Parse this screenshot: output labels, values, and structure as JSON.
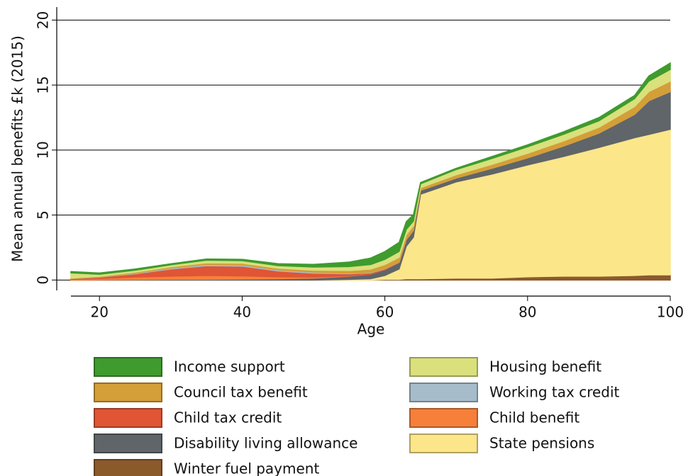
{
  "chart_data": {
    "type": "stacked-area",
    "x_label": "Age",
    "y_label": "Mean annual benefits £k (2015)",
    "x": [
      16,
      20,
      25,
      30,
      35,
      40,
      45,
      50,
      55,
      58,
      60,
      62,
      63,
      64,
      65,
      70,
      75,
      80,
      85,
      90,
      95,
      97,
      100
    ],
    "xlim": [
      16,
      100
    ],
    "xticks": [
      20,
      40,
      60,
      80,
      100
    ],
    "ylim": [
      -0.8,
      21
    ],
    "yticks": [
      0,
      5,
      10,
      15,
      20
    ],
    "grid": true,
    "series": [
      {
        "name": "Income support",
        "color": "#3f9b2e",
        "values": [
          0.1,
          0.1,
          0.1,
          0.08,
          0.1,
          0.1,
          0.15,
          0.2,
          0.35,
          0.5,
          0.6,
          0.7,
          0.6,
          0.5,
          0.1,
          0.1,
          0.15,
          0.15,
          0.2,
          0.25,
          0.25,
          0.4,
          0.5
        ]
      },
      {
        "name": "Housing benefit",
        "color": "#d9e07c",
        "values": [
          0.4,
          0.15,
          0.15,
          0.15,
          0.2,
          0.2,
          0.2,
          0.25,
          0.3,
          0.35,
          0.4,
          0.45,
          0.4,
          0.35,
          0.3,
          0.4,
          0.45,
          0.5,
          0.5,
          0.5,
          0.6,
          0.8,
          0.9
        ]
      },
      {
        "name": "Council tax benefit",
        "color": "#d49e38",
        "values": [
          0.05,
          0.05,
          0.07,
          0.1,
          0.12,
          0.12,
          0.13,
          0.15,
          0.2,
          0.25,
          0.3,
          0.35,
          0.35,
          0.35,
          0.2,
          0.25,
          0.3,
          0.35,
          0.4,
          0.45,
          0.6,
          0.7,
          0.8
        ]
      },
      {
        "name": "Working tax credit",
        "color": "#a7bccb",
        "values": [
          0,
          0.02,
          0.05,
          0.07,
          0.1,
          0.1,
          0.08,
          0.07,
          0.05,
          0.04,
          0.03,
          0.02,
          0.02,
          0.01,
          0,
          0,
          0,
          0,
          0,
          0,
          0,
          0,
          0
        ]
      },
      {
        "name": "Child tax credit",
        "color": "#df5535",
        "values": [
          0.05,
          0.1,
          0.25,
          0.55,
          0.75,
          0.75,
          0.45,
          0.3,
          0.15,
          0.08,
          0.05,
          0.03,
          0.02,
          0.02,
          0,
          0,
          0,
          0,
          0,
          0,
          0,
          0,
          0
        ]
      },
      {
        "name": "Child benefit",
        "color": "#f6803a",
        "values": [
          0.05,
          0.1,
          0.2,
          0.25,
          0.3,
          0.25,
          0.15,
          0.08,
          0.03,
          0.02,
          0.01,
          0,
          0,
          0,
          0,
          0,
          0,
          0,
          0,
          0,
          0,
          0,
          0
        ]
      },
      {
        "name": "Disability living allowance",
        "color": "#5f6569",
        "values": [
          0,
          0.02,
          0.03,
          0.05,
          0.05,
          0.07,
          0.1,
          0.15,
          0.25,
          0.35,
          0.45,
          0.5,
          0.5,
          0.5,
          0.3,
          0.3,
          0.45,
          0.55,
          0.8,
          1.1,
          1.8,
          2.6,
          2.9
        ]
      },
      {
        "name": "State pensions",
        "color": "#fce68a",
        "values": [
          0,
          0,
          0,
          0,
          0,
          0,
          0,
          0,
          0.05,
          0.1,
          0.3,
          0.8,
          2.5,
          3.2,
          6.5,
          7.4,
          8.0,
          8.6,
          9.2,
          9.9,
          10.6,
          10.8,
          11.2
        ]
      },
      {
        "name": "Winter fuel payment",
        "color": "#8b5a2b",
        "values": [
          0,
          0,
          0,
          0,
          0,
          0,
          0,
          0,
          0,
          0,
          0.05,
          0.05,
          0.1,
          0.1,
          0.1,
          0.15,
          0.15,
          0.25,
          0.3,
          0.3,
          0.35,
          0.4,
          0.4
        ]
      }
    ]
  }
}
